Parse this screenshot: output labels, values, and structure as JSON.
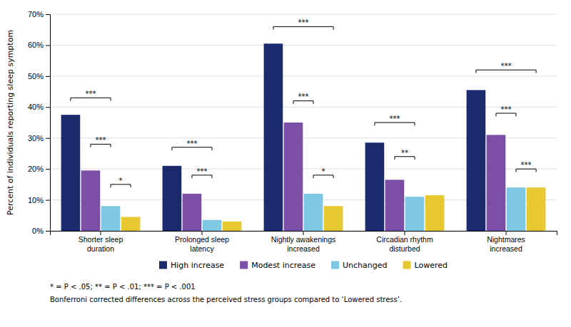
{
  "chart_data": {
    "type": "bar",
    "categories": [
      "Shorter sleep\nduration",
      "Prolonged sleep\nlatency",
      "Nightly awakenings\nincreased",
      "Circadian rhythm\ndisturbed",
      "Nightmares\nincreased"
    ],
    "series": [
      {
        "name": "High increase",
        "color": "#1a2a6c",
        "values": [
          37.5,
          21.0,
          60.5,
          28.5,
          45.5
        ]
      },
      {
        "name": "Modest increase",
        "color": "#7b4fa6",
        "values": [
          19.5,
          12.0,
          35.0,
          16.5,
          31.0
        ]
      },
      {
        "name": "Unchanged",
        "color": "#7ec8e3",
        "values": [
          8.0,
          3.5,
          12.0,
          11.0,
          14.0
        ]
      },
      {
        "name": "Lowered",
        "color": "#e8c830",
        "values": [
          4.5,
          3.0,
          8.0,
          11.5,
          14.0
        ]
      }
    ],
    "ylabel": "Percent of individuals reporting sleep symptom",
    "ylim": [
      0,
      70
    ],
    "yticks": [
      {
        "value": 0,
        "label": "0%"
      },
      {
        "value": 10,
        "label": "10%"
      },
      {
        "value": 20,
        "label": "20%"
      },
      {
        "value": 30,
        "label": "30%"
      },
      {
        "value": 40,
        "label": "40%"
      },
      {
        "value": 50,
        "label": "50%"
      },
      {
        "value": 60,
        "label": "60%"
      },
      {
        "value": 70,
        "label": "70%"
      }
    ],
    "grid": true,
    "legend": "bottom",
    "annotations": [
      {
        "category": 0,
        "from": 0,
        "to": 2,
        "y": 43,
        "text": "***"
      },
      {
        "category": 0,
        "from": 1,
        "to": 2,
        "y": 28,
        "text": "***"
      },
      {
        "category": 0,
        "from": 2,
        "to": 3,
        "y": 15,
        "text": "*"
      },
      {
        "category": 1,
        "from": 0,
        "to": 2,
        "y": 27,
        "text": "***"
      },
      {
        "category": 1,
        "from": 1,
        "to": 2,
        "y": 18,
        "text": "***"
      },
      {
        "category": 2,
        "from": 0,
        "to": 3,
        "y": 66,
        "text": "***"
      },
      {
        "category": 2,
        "from": 1,
        "to": 2,
        "y": 42,
        "text": "***"
      },
      {
        "category": 2,
        "from": 2,
        "to": 3,
        "y": 18,
        "text": "*"
      },
      {
        "category": 3,
        "from": 0,
        "to": 2,
        "y": 35,
        "text": "***"
      },
      {
        "category": 3,
        "from": 1,
        "to": 2,
        "y": 24,
        "text": "**"
      },
      {
        "category": 4,
        "from": 0,
        "to": 3,
        "y": 52,
        "text": "***"
      },
      {
        "category": 4,
        "from": 1,
        "to": 2,
        "y": 38,
        "text": "***"
      },
      {
        "category": 4,
        "from": 2,
        "to": 3,
        "y": 20,
        "text": "***"
      }
    ],
    "footnotes": [
      "* = P < .05; ** = P < .01; *** = P < .001",
      "Bonferroni corrected differences across the perceived stress groups compared to ‘Lowered stress’."
    ]
  }
}
